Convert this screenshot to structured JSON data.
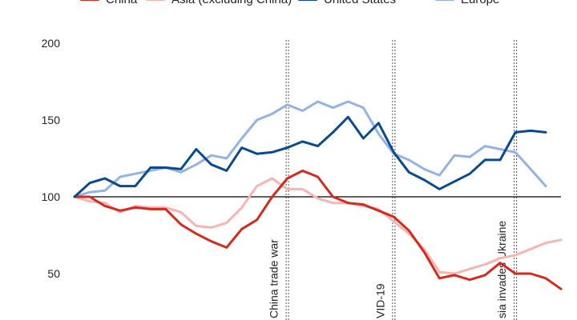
{
  "chart_data": {
    "type": "line",
    "title": "",
    "xlabel": "",
    "ylabel": "",
    "ylim": [
      40,
      200
    ],
    "yticks": [
      50,
      100,
      150,
      200
    ],
    "baseline": 100,
    "grid": false,
    "legend_position": "top",
    "series": [
      {
        "name": "China",
        "color": "#d52b1e",
        "values": [
          100,
          100,
          94,
          91,
          93,
          92,
          92,
          82,
          76,
          71,
          67,
          79,
          85,
          100,
          112,
          117,
          113,
          100,
          96,
          95,
          91,
          87,
          78,
          64,
          47,
          49,
          46,
          49,
          57,
          50,
          50,
          47,
          40
        ]
      },
      {
        "name": "Asia (excluding China)",
        "color": "#f5b5b1",
        "values": [
          100,
          97,
          96,
          90,
          94,
          93,
          93,
          90,
          81,
          80,
          83,
          93,
          107,
          112,
          105,
          105,
          99,
          96,
          96,
          94,
          92,
          84,
          76,
          66,
          51,
          50,
          53,
          56,
          60,
          62,
          66,
          70,
          72
        ]
      },
      {
        "name": "United States",
        "color": "#0a4a8f",
        "values": [
          100,
          109,
          112,
          107,
          107,
          119,
          119,
          118,
          131,
          121,
          117,
          132,
          128,
          129,
          132,
          136,
          133,
          142,
          152,
          138,
          148,
          129,
          116,
          111,
          105,
          110,
          115,
          124,
          124,
          142,
          143,
          142
        ]
      },
      {
        "name": "Europe",
        "color": "#93b4e2",
        "values": [
          100,
          103,
          104,
          113,
          115,
          117,
          119,
          116,
          121,
          127,
          125,
          138,
          150,
          154,
          160,
          156,
          162,
          158,
          162,
          158,
          141,
          128,
          124,
          118,
          114,
          127,
          126,
          133,
          131,
          129,
          118,
          107
        ]
      }
    ],
    "events": [
      {
        "label": "China trade war",
        "index": 14
      },
      {
        "label": "VID-19",
        "index": 21
      },
      {
        "label": "sia invades Ukraine",
        "index": 29
      }
    ]
  }
}
